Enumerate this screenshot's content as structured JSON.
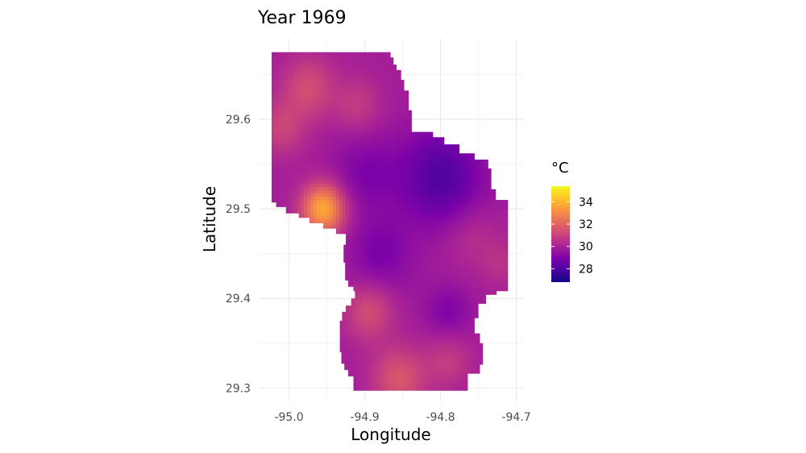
{
  "chart_data": {
    "type": "heatmap",
    "title": "Year 1969",
    "xlabel": "Longitude",
    "ylabel": "Latitude",
    "xlim": [
      -95.04,
      -94.69
    ],
    "ylim": [
      29.285,
      29.69
    ],
    "x_ticks": [
      -95.0,
      -94.9,
      -94.8,
      -94.7
    ],
    "x_tick_labels": [
      "-95.0",
      "-94.9",
      "-94.8",
      "-94.7"
    ],
    "y_ticks": [
      29.3,
      29.4,
      29.5,
      29.6
    ],
    "y_tick_labels": [
      "29.3",
      "29.4",
      "29.5",
      "29.6"
    ],
    "grid": true,
    "colormap": "plasma",
    "legend": {
      "title": "°C",
      "position": "right",
      "range": [
        26.8,
        35.4
      ],
      "ticks": [
        28,
        30,
        32,
        34
      ],
      "tick_labels": [
        "28",
        "30",
        "32",
        "34"
      ]
    },
    "region_outline": [
      [
        -95.023,
        29.675
      ],
      [
        -94.866,
        29.675
      ],
      [
        -94.866,
        29.669
      ],
      [
        -94.862,
        29.669
      ],
      [
        -94.862,
        29.661
      ],
      [
        -94.858,
        29.661
      ],
      [
        -94.858,
        29.655
      ],
      [
        -94.852,
        29.655
      ],
      [
        -94.852,
        29.644
      ],
      [
        -94.848,
        29.644
      ],
      [
        -94.848,
        29.632
      ],
      [
        -94.842,
        29.632
      ],
      [
        -94.842,
        29.61
      ],
      [
        -94.838,
        29.61
      ],
      [
        -94.838,
        29.586
      ],
      [
        -94.81,
        29.586
      ],
      [
        -94.81,
        29.58
      ],
      [
        -94.795,
        29.58
      ],
      [
        -94.795,
        29.572
      ],
      [
        -94.775,
        29.572
      ],
      [
        -94.775,
        29.562
      ],
      [
        -94.755,
        29.562
      ],
      [
        -94.755,
        29.555
      ],
      [
        -94.737,
        29.555
      ],
      [
        -94.737,
        29.545
      ],
      [
        -94.733,
        29.545
      ],
      [
        -94.733,
        29.522
      ],
      [
        -94.727,
        29.522
      ],
      [
        -94.727,
        29.51
      ],
      [
        -94.711,
        29.51
      ],
      [
        -94.711,
        29.408
      ],
      [
        -94.726,
        29.408
      ],
      [
        -94.726,
        29.404
      ],
      [
        -94.74,
        29.404
      ],
      [
        -94.74,
        29.394
      ],
      [
        -94.75,
        29.394
      ],
      [
        -94.75,
        29.378
      ],
      [
        -94.755,
        29.378
      ],
      [
        -94.755,
        29.361
      ],
      [
        -94.748,
        29.361
      ],
      [
        -94.748,
        29.35
      ],
      [
        -94.744,
        29.35
      ],
      [
        -94.744,
        29.326
      ],
      [
        -94.748,
        29.326
      ],
      [
        -94.748,
        29.316
      ],
      [
        -94.764,
        29.316
      ],
      [
        -94.764,
        29.297
      ],
      [
        -94.915,
        29.297
      ],
      [
        -94.915,
        29.313
      ],
      [
        -94.922,
        29.313
      ],
      [
        -94.922,
        29.32
      ],
      [
        -94.927,
        29.32
      ],
      [
        -94.927,
        29.327
      ],
      [
        -94.931,
        29.327
      ],
      [
        -94.931,
        29.34
      ],
      [
        -94.933,
        29.34
      ],
      [
        -94.933,
        29.375
      ],
      [
        -94.93,
        29.375
      ],
      [
        -94.93,
        29.385
      ],
      [
        -94.925,
        29.385
      ],
      [
        -94.925,
        29.392
      ],
      [
        -94.918,
        29.392
      ],
      [
        -94.918,
        29.4
      ],
      [
        -94.913,
        29.4
      ],
      [
        -94.913,
        29.408
      ],
      [
        -94.915,
        29.408
      ],
      [
        -94.915,
        29.413
      ],
      [
        -94.922,
        29.413
      ],
      [
        -94.922,
        29.42
      ],
      [
        -94.926,
        29.42
      ],
      [
        -94.926,
        29.44
      ],
      [
        -94.928,
        29.44
      ],
      [
        -94.928,
        29.46
      ],
      [
        -94.925,
        29.46
      ],
      [
        -94.925,
        29.472
      ],
      [
        -94.938,
        29.472
      ],
      [
        -94.938,
        29.478
      ],
      [
        -94.955,
        29.478
      ],
      [
        -94.955,
        29.484
      ],
      [
        -94.973,
        29.484
      ],
      [
        -94.973,
        29.49
      ],
      [
        -94.987,
        29.49
      ],
      [
        -94.987,
        29.495
      ],
      [
        -95.004,
        29.495
      ],
      [
        -95.004,
        29.502
      ],
      [
        -95.017,
        29.502
      ],
      [
        -95.017,
        29.507
      ],
      [
        -95.023,
        29.507
      ]
    ],
    "hotspots": [
      {
        "x": -94.955,
        "y": 29.5,
        "value": 33.8,
        "r": 0.028
      },
      {
        "x": -94.975,
        "y": 29.635,
        "value": 31.3,
        "r": 0.035
      },
      {
        "x": -95.01,
        "y": 29.59,
        "value": 31.0,
        "r": 0.03
      },
      {
        "x": -94.91,
        "y": 29.615,
        "value": 30.8,
        "r": 0.03
      },
      {
        "x": -94.895,
        "y": 29.385,
        "value": 31.3,
        "r": 0.032
      },
      {
        "x": -94.855,
        "y": 29.31,
        "value": 31.6,
        "r": 0.035
      },
      {
        "x": -94.79,
        "y": 29.33,
        "value": 30.8,
        "r": 0.03
      },
      {
        "x": -94.76,
        "y": 29.47,
        "value": 30.5,
        "r": 0.035
      },
      {
        "x": -94.72,
        "y": 29.44,
        "value": 30.5,
        "r": 0.025
      },
      {
        "x": -94.84,
        "y": 29.42,
        "value": 29.8,
        "r": 0.03
      },
      {
        "x": -94.8,
        "y": 29.535,
        "value": 28.0,
        "r": 0.055
      },
      {
        "x": -94.88,
        "y": 29.45,
        "value": 28.9,
        "r": 0.04
      },
      {
        "x": -94.9,
        "y": 29.54,
        "value": 29.0,
        "r": 0.045
      },
      {
        "x": -94.79,
        "y": 29.385,
        "value": 29.0,
        "r": 0.03
      }
    ],
    "base_value": 29.9
  }
}
